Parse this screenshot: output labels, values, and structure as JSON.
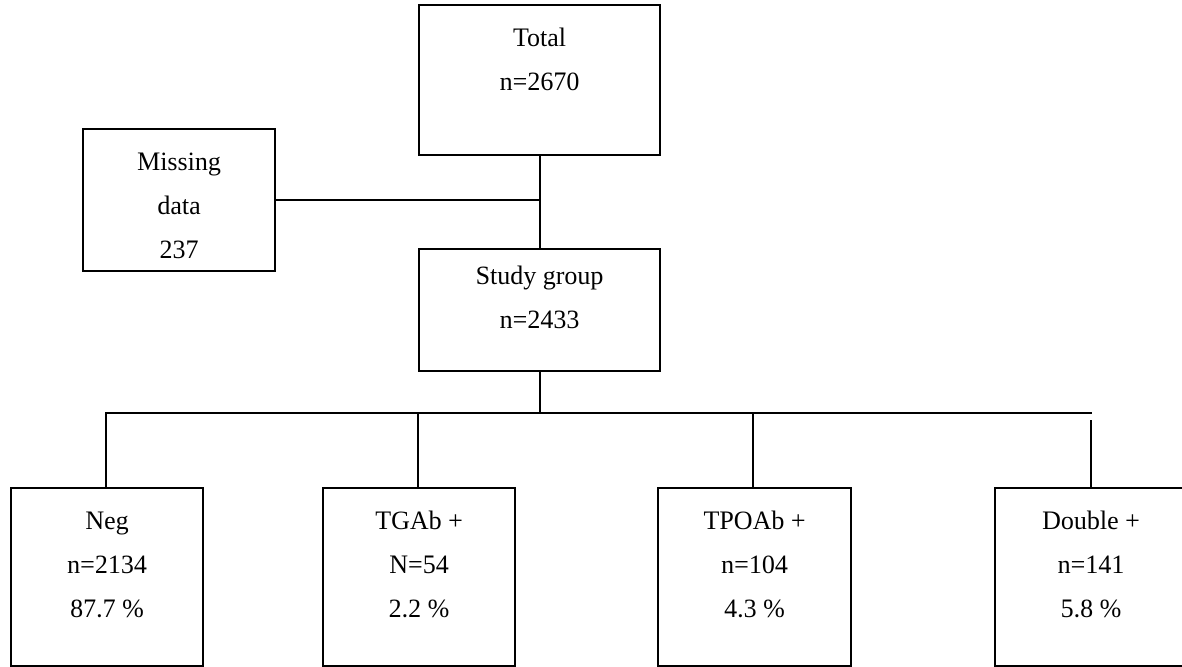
{
  "nodes": {
    "total": {
      "lines": [
        "Total",
        "n=2670"
      ]
    },
    "missing": {
      "lines": [
        "Missing",
        "data",
        "237"
      ]
    },
    "study_group": {
      "lines": [
        "Study group",
        "n=2433"
      ]
    },
    "neg": {
      "lines": [
        "Neg",
        "n=2134",
        "87.7 %"
      ]
    },
    "tgab": {
      "lines": [
        "TGAb +",
        "N=54",
        "2.2 %"
      ]
    },
    "tpoab": {
      "lines": [
        "TPOAb +",
        "n=104",
        "4.3 %"
      ]
    },
    "double": {
      "lines": [
        "Double +",
        "n=141",
        "5.8 %"
      ]
    }
  }
}
